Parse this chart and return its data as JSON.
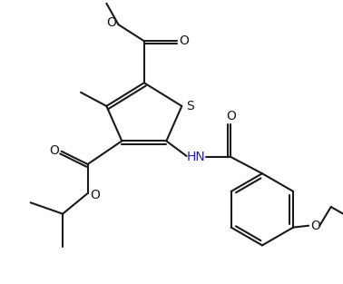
{
  "bg_color": "#ffffff",
  "line_color": "#1a1a1a",
  "hn_color": "#2222bb",
  "lw": 1.5,
  "xlim": [
    0,
    10
  ],
  "ylim": [
    0,
    8.3
  ],
  "figsize": [
    3.78,
    3.13
  ],
  "dpi": 100
}
